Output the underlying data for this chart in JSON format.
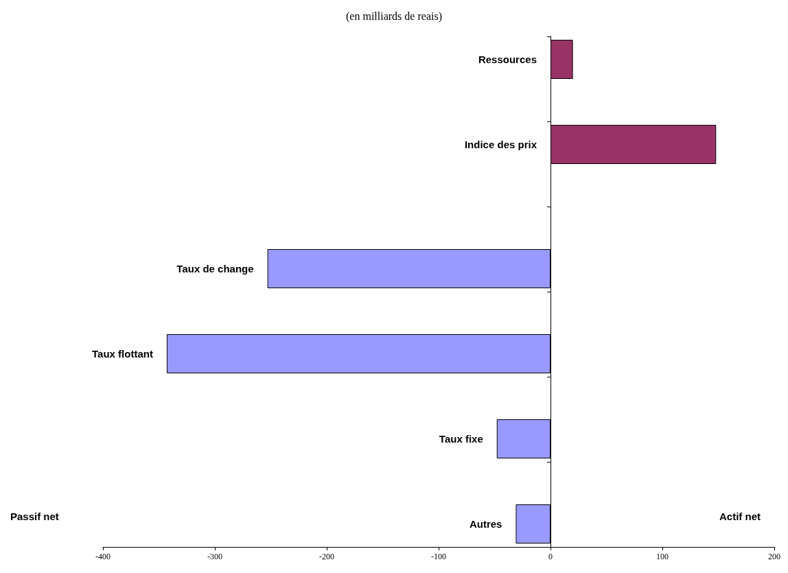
{
  "chart_data": {
    "type": "bar",
    "orientation": "horizontal",
    "title": "(en milliards de reais)",
    "categories": [
      "Ressources",
      "Indice des prix",
      "Taux de change",
      "Taux flottant",
      "Taux fixe",
      "Autres"
    ],
    "series": [
      {
        "color": "#993366",
        "values": [
          20,
          148,
          null,
          null,
          null,
          null
        ]
      },
      {
        "color": "#9999ff",
        "values": [
          null,
          null,
          -253,
          -343,
          -48,
          -31
        ]
      }
    ],
    "xlim": [
      -400,
      200
    ],
    "xticks": [
      -400,
      -300,
      -200,
      -100,
      0,
      100,
      200
    ],
    "grid": false,
    "annotations": [
      "Passif net",
      "Actif net"
    ]
  }
}
